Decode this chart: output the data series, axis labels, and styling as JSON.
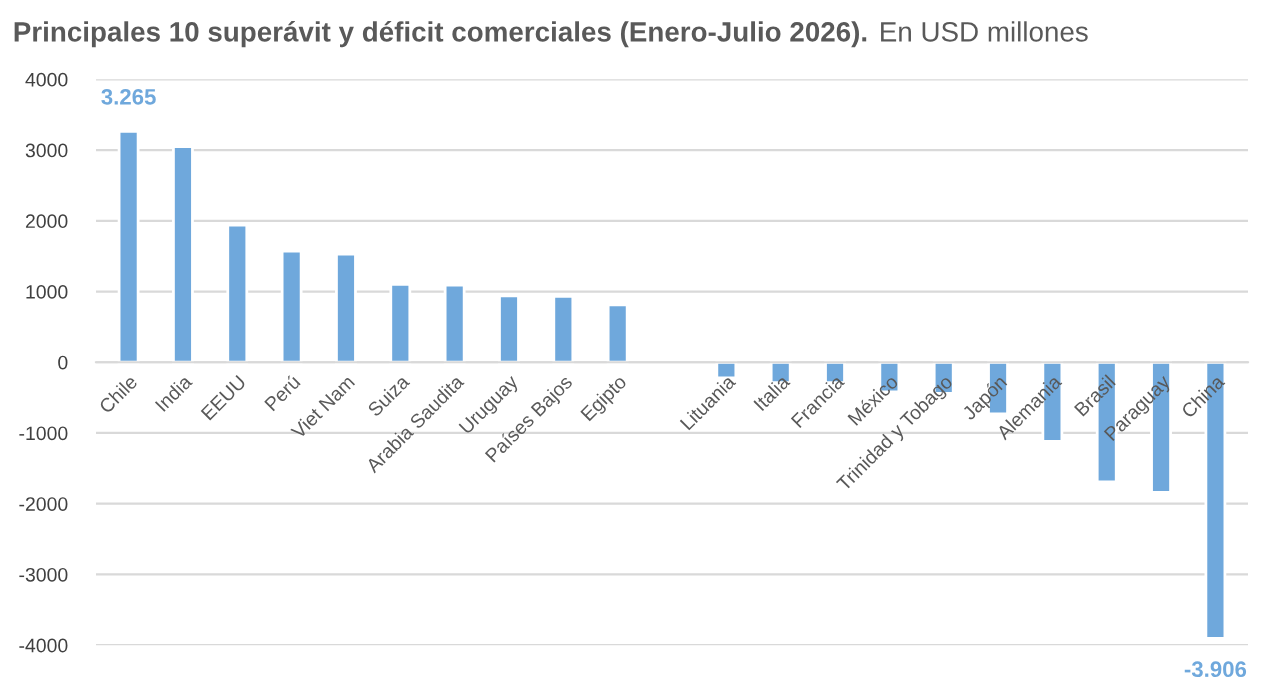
{
  "chart_data": {
    "type": "bar",
    "title": "Principales 10 superávit y déficit comerciales (Enero-Julio 2026).",
    "subtitle": "En USD millones",
    "categories": [
      "Chile",
      "India",
      "EEUU",
      "Perú",
      "Viet Nam",
      "Suiza",
      "Arabia Saudita",
      "Uruguay",
      "Países Bajos",
      "Egipto",
      null,
      "Lituania",
      "Italia",
      "Francia",
      "México",
      "Trinidad y Tobago",
      "Japón",
      "Alemania",
      "Brasil",
      "Paraguay",
      "China"
    ],
    "values": [
      3265,
      3050,
      1940,
      1570,
      1530,
      1100,
      1090,
      940,
      930,
      810,
      null,
      -220,
      -290,
      -290,
      -420,
      -440,
      -730,
      -1120,
      -1690,
      -1840,
      -3906
    ],
    "value_labels": [
      "3.265",
      null,
      null,
      null,
      null,
      null,
      null,
      null,
      null,
      null,
      null,
      null,
      null,
      null,
      null,
      null,
      null,
      null,
      null,
      null,
      "-3.906"
    ],
    "color": "#6fa8dc",
    "ylim": [
      -4000,
      4000
    ],
    "yticks": [
      -4000,
      -3000,
      -2000,
      -1000,
      0,
      1000,
      2000,
      3000,
      4000
    ],
    "grid": "y"
  }
}
